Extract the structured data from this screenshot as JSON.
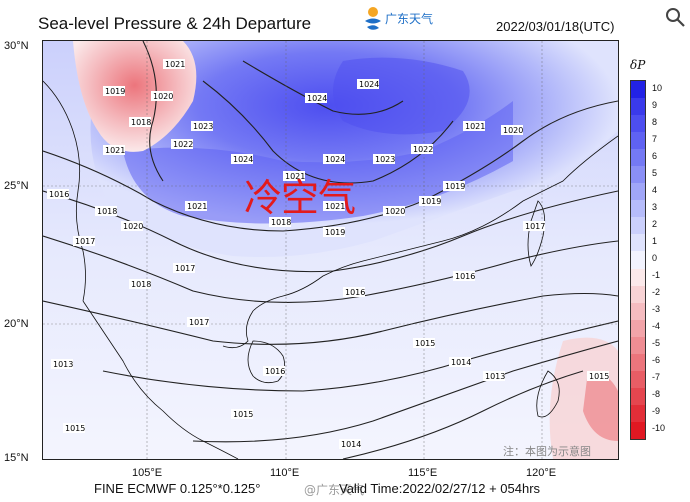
{
  "header": {
    "title": "Sea-level Pressure & 24h Departure",
    "logo_text": "广东天气",
    "timestamp": "2022/03/01/18(UTC)"
  },
  "axes": {
    "lat_labels": [
      "30°N",
      "25°N",
      "20°N",
      "15°N"
    ],
    "lon_labels": [
      "105°E",
      "110°E",
      "115°E",
      "120°E"
    ]
  },
  "annotation": {
    "cold_air": "冷空气"
  },
  "legend": {
    "title": "δP",
    "labels": [
      "10",
      "9",
      "8",
      "7",
      "6",
      "5",
      "4",
      "3",
      "2",
      "1",
      "0",
      "-1",
      "-2",
      "-3",
      "-4",
      "-5",
      "-6",
      "-7",
      "-8",
      "-9",
      "-10"
    ],
    "colors": [
      "#2222e6",
      "#3a3aeb",
      "#4d4ef0",
      "#5f62f2",
      "#7479f4",
      "#8a8ff6",
      "#a0a6f8",
      "#b6bcfa",
      "#cbd0fc",
      "#dfe3fd",
      "#f2f3fe",
      "#fbe9ea",
      "#f8d3d5",
      "#f5bcc0",
      "#f2a4a9",
      "#ef8d93",
      "#ec757c",
      "#e85d65",
      "#e5464f",
      "#e22e38",
      "#e01822"
    ]
  },
  "contour_labels": [
    {
      "text": "1021"
    },
    {
      "text": "1020"
    },
    {
      "text": "1019"
    },
    {
      "text": "1018"
    },
    {
      "text": "1021"
    },
    {
      "text": "1022"
    },
    {
      "text": "1023"
    },
    {
      "text": "1024"
    },
    {
      "text": "1024"
    },
    {
      "text": "1024"
    },
    {
      "text": "1024"
    },
    {
      "text": "1022"
    },
    {
      "text": "1023"
    },
    {
      "text": "1021"
    },
    {
      "text": "1020"
    },
    {
      "text": "1021"
    },
    {
      "text": "1020"
    },
    {
      "text": "1019"
    },
    {
      "text": "1021"
    },
    {
      "text": "1016"
    },
    {
      "text": "1018"
    },
    {
      "text": "1017"
    },
    {
      "text": "1019"
    },
    {
      "text": "1018"
    },
    {
      "text": "1019"
    },
    {
      "text": "1018"
    },
    {
      "text": "1017"
    },
    {
      "text": "1016"
    },
    {
      "text": "1015"
    },
    {
      "text": "1014"
    },
    {
      "text": "1013"
    },
    {
      "text": "1017"
    },
    {
      "text": "1016"
    },
    {
      "text": "1015"
    },
    {
      "text": "1014"
    },
    {
      "text": "1013"
    },
    {
      "text": "1015"
    },
    {
      "text": "1016"
    },
    {
      "text": "1021"
    },
    {
      "text": "1020"
    },
    {
      "text": "1017"
    },
    {
      "text": "1015"
    }
  ],
  "footer": {
    "model": "FINE ECMWF 0.125°*0.125°",
    "weibo": "@广东天气",
    "valid_time": "Valid Time:2022/02/27/12 + 054hrs",
    "note": "注：本图为示意图"
  }
}
